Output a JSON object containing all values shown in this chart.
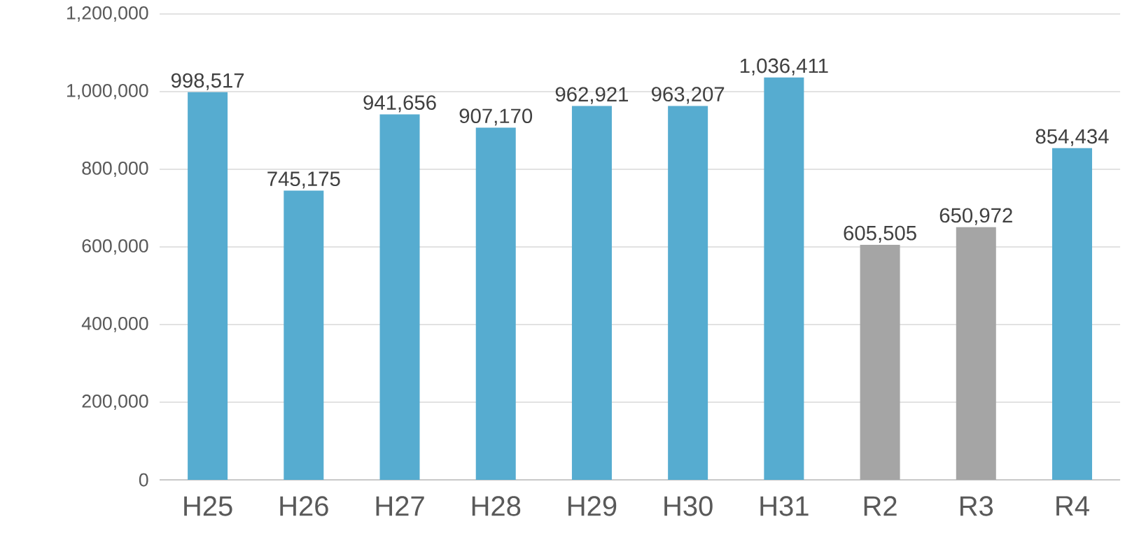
{
  "chart_data": {
    "type": "bar",
    "categories": [
      "H25",
      "H26",
      "H27",
      "H28",
      "H29",
      "H30",
      "H31",
      "R2",
      "R3",
      "R4"
    ],
    "values": [
      998517,
      745175,
      941656,
      907170,
      962921,
      963207,
      1036411,
      605505,
      650972,
      854434
    ],
    "colors": [
      "#56acd0",
      "#56acd0",
      "#56acd0",
      "#56acd0",
      "#56acd0",
      "#56acd0",
      "#56acd0",
      "#a5a5a5",
      "#a5a5a5",
      "#56acd0"
    ],
    "value_labels": [
      "998,517",
      "745,175",
      "941,656",
      "907,170",
      "962,921",
      "963,207",
      "1,036,411",
      "605,505",
      "650,972",
      "854,434"
    ],
    "ylim": [
      0,
      1200000
    ],
    "yticks": [
      0,
      {
        "value": 200000,
        "label": "200,000"
      },
      {
        "value": 400000,
        "label": "400,000"
      },
      {
        "value": 600000,
        "label": "600,000"
      },
      {
        "value": 800000,
        "label": "800,000"
      },
      {
        "value": 1000000,
        "label": "1,000,000"
      },
      {
        "value": 1200000,
        "label": "1,200,000"
      }
    ],
    "grid": "y"
  }
}
